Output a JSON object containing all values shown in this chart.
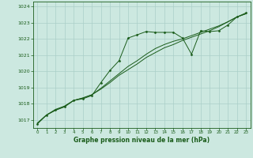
{
  "title": "Graphe pression niveau de la mer (hPa)",
  "bg_color": "#cce8e0",
  "grid_color": "#aacfc8",
  "line_color": "#1a5c1a",
  "xlim": [
    -0.5,
    23.5
  ],
  "ylim": [
    1016.5,
    1024.3
  ],
  "yticks": [
    1017,
    1018,
    1019,
    1020,
    1021,
    1022,
    1023,
    1024
  ],
  "xticks": [
    0,
    1,
    2,
    3,
    4,
    5,
    6,
    7,
    8,
    9,
    10,
    11,
    12,
    13,
    14,
    15,
    16,
    17,
    18,
    19,
    20,
    21,
    22,
    23
  ],
  "series1_x": [
    0,
    1,
    2,
    3,
    4,
    5,
    6,
    7,
    8,
    9,
    10,
    11,
    12,
    13,
    14,
    15,
    16,
    17,
    18,
    19,
    20,
    21,
    22,
    23
  ],
  "series1_y": [
    1016.8,
    1017.3,
    1017.6,
    1017.85,
    1018.2,
    1018.35,
    1018.55,
    1018.9,
    1019.3,
    1019.75,
    1020.1,
    1020.45,
    1020.85,
    1021.15,
    1021.45,
    1021.65,
    1021.9,
    1022.1,
    1022.3,
    1022.5,
    1022.75,
    1023.05,
    1023.35,
    1023.55
  ],
  "series2_x": [
    0,
    1,
    2,
    3,
    4,
    5,
    6,
    7,
    8,
    9,
    10,
    11,
    12,
    13,
    14,
    15,
    16,
    17,
    18,
    19,
    20,
    21,
    22,
    23
  ],
  "series2_y": [
    1016.8,
    1017.3,
    1017.65,
    1017.85,
    1018.2,
    1018.35,
    1018.55,
    1018.95,
    1019.4,
    1019.85,
    1020.3,
    1020.65,
    1021.05,
    1021.4,
    1021.65,
    1021.85,
    1022.0,
    1022.2,
    1022.4,
    1022.6,
    1022.8,
    1023.05,
    1023.35,
    1023.55
  ],
  "series3_x": [
    0,
    1,
    2,
    3,
    4,
    5,
    6,
    7,
    8,
    9,
    10,
    11,
    12,
    13,
    14,
    15,
    16,
    17,
    18,
    19,
    20,
    21,
    22,
    23
  ],
  "series3_y": [
    1016.75,
    1017.3,
    1017.6,
    1017.8,
    1018.2,
    1018.3,
    1018.5,
    1019.3,
    1020.05,
    1020.65,
    1022.05,
    1022.25,
    1022.45,
    1022.4,
    1022.4,
    1022.4,
    1022.05,
    1021.05,
    1022.5,
    1022.45,
    1022.5,
    1022.85,
    1023.35,
    1023.6
  ]
}
